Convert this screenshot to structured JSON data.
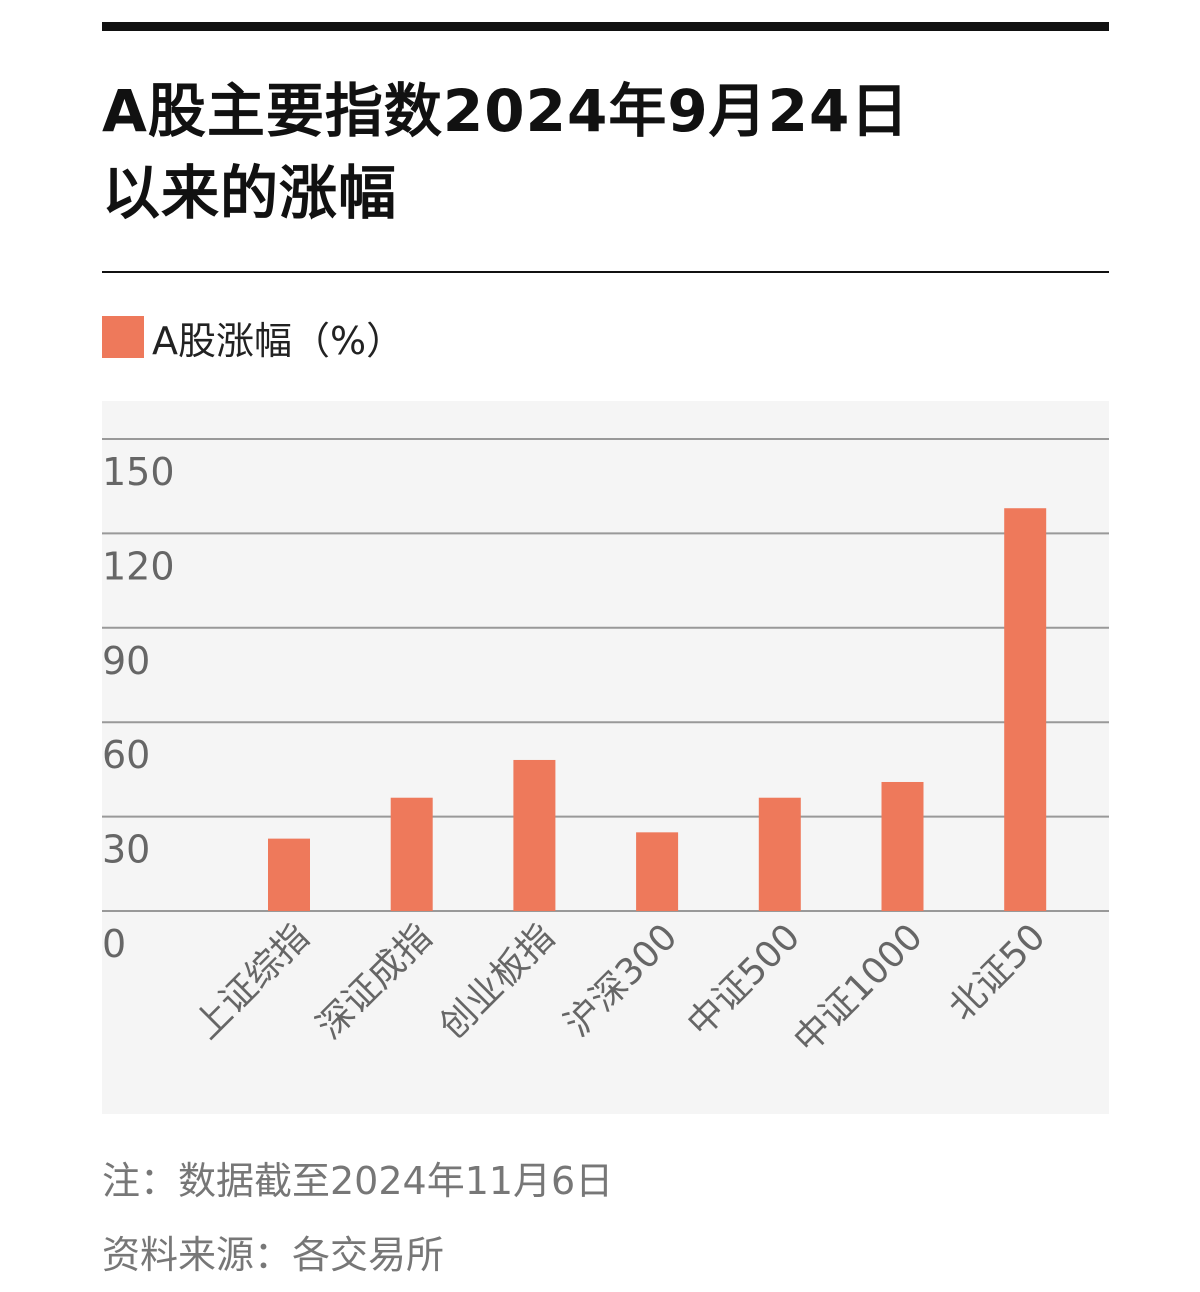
{
  "title_lines": [
    "A股主要指数2024年9月24日",
    "以来的涨幅"
  ],
  "legend": {
    "label": "A股涨幅（%）"
  },
  "colors": {
    "bar": "#ee795b",
    "grid": "#999999",
    "tick_text": "#666666",
    "background": "#f5f5f5"
  },
  "notes": {
    "date_note": "注：数据截至2024年11月6日",
    "source": "资料来源：各交易所"
  },
  "chart_data": {
    "type": "bar",
    "title": "A股主要指数2024年9月24日以来的涨幅",
    "xlabel": "",
    "ylabel": "",
    "ylim": [
      0,
      150
    ],
    "yticks": [
      0,
      30,
      60,
      90,
      120,
      150
    ],
    "grid": true,
    "legend_position": "top-left",
    "categories": [
      "上证综指",
      "深证成指",
      "创业板指",
      "沪深300",
      "中证500",
      "中证1000",
      "北证50"
    ],
    "series": [
      {
        "name": "A股涨幅（%）",
        "values": [
          23,
          36,
          48,
          25,
          36,
          41,
          128
        ]
      }
    ]
  }
}
